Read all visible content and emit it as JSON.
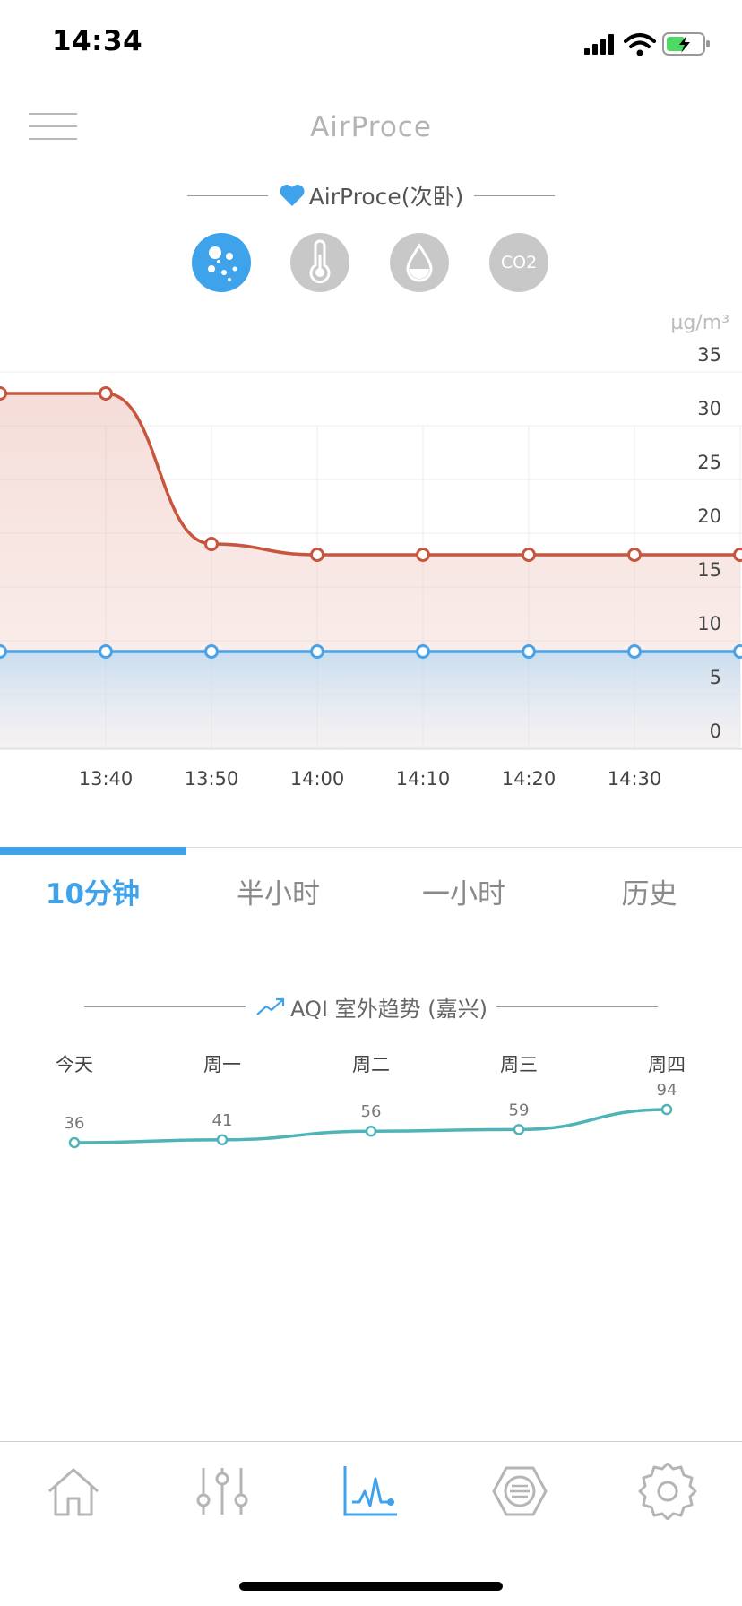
{
  "status_bar": {
    "time": "14:34"
  },
  "header": {
    "title": "AirProce"
  },
  "device": {
    "name": "AirProce(次卧)"
  },
  "metrics": [
    {
      "icon": "particles-icon",
      "active": true
    },
    {
      "icon": "thermometer-icon",
      "active": false
    },
    {
      "icon": "humidity-drop-icon",
      "active": false
    },
    {
      "icon": "co2-icon",
      "label": "CO2",
      "active": false
    }
  ],
  "main_chart": {
    "unit": "µg/m³"
  },
  "tabs": [
    "10分钟",
    "半小时",
    "一小时",
    "历史"
  ],
  "aqi_section": {
    "title": "AQI 室外趋势 (嘉兴)"
  },
  "colors": {
    "accent": "#3fa3ec",
    "indoor_line": "#c8553d",
    "outdoor_line": "#4aa3e8",
    "aqi_line": "#4fb3b8"
  },
  "chart_data": [
    {
      "type": "line",
      "title": "",
      "xlabel": "",
      "ylabel": "µg/m³",
      "x": [
        "13:30",
        "13:40",
        "13:50",
        "14:00",
        "14:10",
        "14:20",
        "14:30",
        "14:40"
      ],
      "x_ticks": [
        "13:40",
        "13:50",
        "14:00",
        "14:10",
        "14:20",
        "14:30"
      ],
      "y_ticks": [
        0,
        5,
        10,
        15,
        20,
        25,
        30,
        35
      ],
      "ylim": [
        0,
        35
      ],
      "grid": true,
      "series": [
        {
          "values": [
            33,
            33,
            19,
            18,
            18,
            18,
            18,
            18
          ],
          "color": "#c8553d",
          "fill": true
        },
        {
          "values": [
            9,
            9,
            9,
            9,
            9,
            9,
            9,
            9
          ],
          "color": "#4aa3e8",
          "fill": true
        }
      ]
    },
    {
      "type": "line",
      "title": "",
      "categories": [
        "今天",
        "周一",
        "周二",
        "周三",
        "周四"
      ],
      "values": [
        36,
        41,
        56,
        59,
        94
      ],
      "color": "#4fb3b8",
      "grid": false
    }
  ]
}
